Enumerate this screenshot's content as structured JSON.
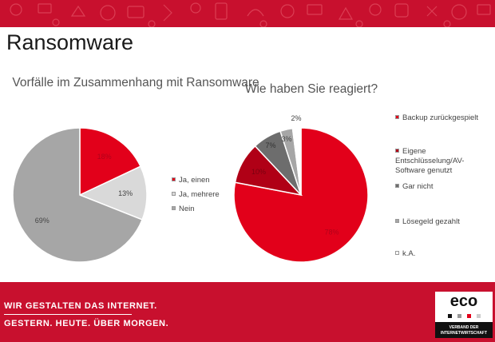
{
  "slide": {
    "title": "Ransomware",
    "slogan_line1": "WIR GESTALTEN DAS INTERNET.",
    "slogan_line2": "GESTERN. HEUTE. ÜBER MORGEN.",
    "logo_text": "eco",
    "logo_subline1": "VERBAND DER",
    "logo_subline2": "INTERNETWIRTSCHAFT"
  },
  "colors": {
    "brand_red": "#c8102e",
    "dark_red": "#9e0b1e",
    "light_gray": "#d9d9d9",
    "mid_gray": "#a6a6a6",
    "dark_gray": "#6d6d6d",
    "white": "#ffffff"
  },
  "chart_data": [
    {
      "type": "pie",
      "title": "Vorfälle im Zusammenhang mit Ransomware",
      "legend_position": "right",
      "slices": [
        {
          "label": "Ja, einen",
          "value": 18,
          "data_label": "18%",
          "color": "#e2001a"
        },
        {
          "label": "Ja, mehrere",
          "value": 13,
          "data_label": "13%",
          "color": "#d9d9d9"
        },
        {
          "label": "Nein",
          "value": 69,
          "data_label": "69%",
          "color": "#a6a6a6"
        }
      ]
    },
    {
      "type": "pie",
      "title": "Wie haben Sie reagiert?",
      "legend_position": "right",
      "slices": [
        {
          "label": "Backup zurückgespielt",
          "value": 78,
          "data_label": "78%",
          "color": "#e2001a"
        },
        {
          "label": "Eigene Entschlüsselung/AV-Software genutzt",
          "value": 10,
          "data_label": "10%",
          "color": "#b00016"
        },
        {
          "label": "Gar nicht",
          "value": 7,
          "data_label": "7%",
          "color": "#6d6d6d"
        },
        {
          "label": "Lösegeld gezahlt",
          "value": 3,
          "data_label": "3%",
          "color": "#a6a6a6"
        },
        {
          "label": "k.A.",
          "value": 2,
          "data_label": "2%",
          "color": "#ffffff"
        }
      ]
    }
  ]
}
